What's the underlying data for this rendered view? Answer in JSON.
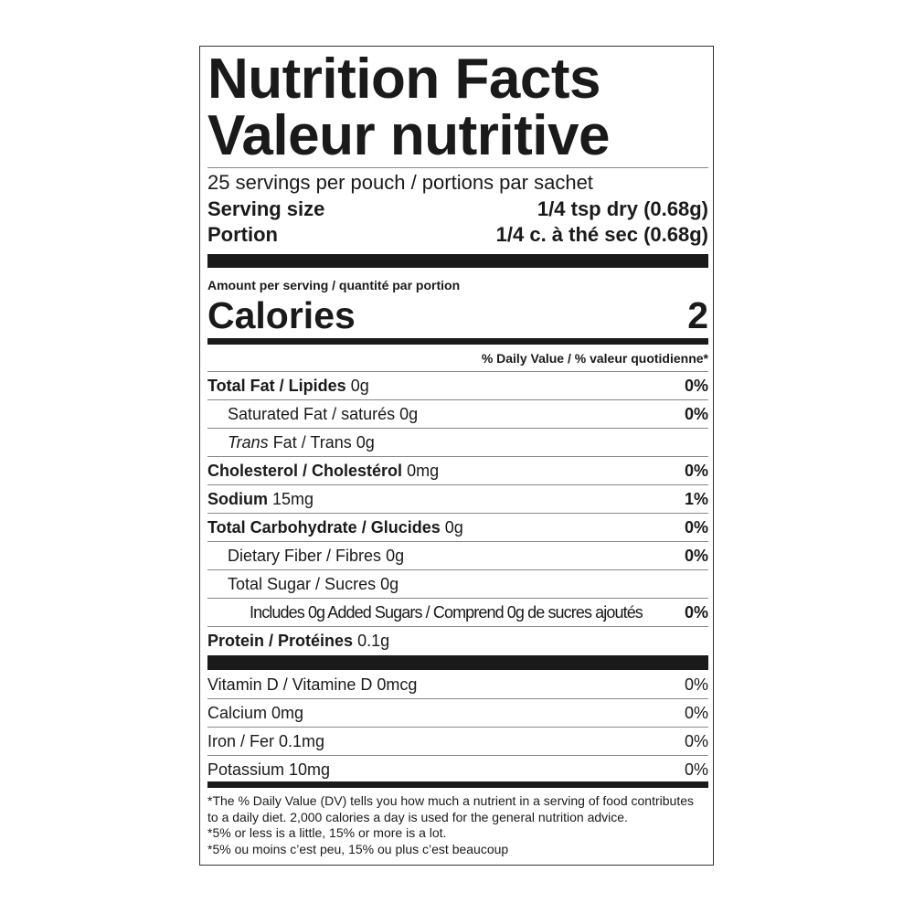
{
  "title_en": "Nutrition Facts",
  "title_fr": "Valeur nutritive",
  "servings": "25 servings per pouch / portions par sachet",
  "serving_size": {
    "label": "Serving size",
    "value": "1/4 tsp dry (0.68g)"
  },
  "portion": {
    "label": "Portion",
    "value": "1/4 c. à thé sec (0.68g)"
  },
  "amount_per_serving": "Amount per serving / quantité par portion",
  "calories": {
    "label": "Calories",
    "value": "2"
  },
  "dv_header": "% Daily Value / % valeur quotidienne*",
  "nutrients": [
    {
      "name": "Total Fat / Lipides",
      "amount": "0g",
      "dv": "0%"
    },
    {
      "name": "Saturated Fat / saturés",
      "amount": "0g",
      "dv": "0%"
    },
    {
      "name_italic": "Trans",
      "name": " Fat / Trans",
      "amount": "0g",
      "dv": ""
    },
    {
      "name": "Cholesterol / Cholestérol",
      "amount": "0mg",
      "dv": "0%"
    },
    {
      "name": "Sodium",
      "amount": "15mg",
      "dv": "1%"
    },
    {
      "name": "Total Carbohydrate / Glucides",
      "amount": "0g",
      "dv": "0%"
    },
    {
      "name": "Dietary Fiber / Fibres",
      "amount": "0g",
      "dv": "0%"
    },
    {
      "name": "Total Sugar / Sucres",
      "amount": "0g",
      "dv": ""
    },
    {
      "name": "Includes 0g Added Sugars / Comprend 0g de sucres ajoutés",
      "amount": "",
      "dv": "0%"
    },
    {
      "name": "Protein / Protéines",
      "amount": "0.1g",
      "dv": ""
    }
  ],
  "vitamins": [
    {
      "name": "Vitamin D / Vitamine D 0mcg",
      "dv": "0%"
    },
    {
      "name": "Calcium 0mg",
      "dv": "0%"
    },
    {
      "name": "Iron / Fer 0.1mg",
      "dv": "0%"
    },
    {
      "name": "Potassium 10mg",
      "dv": "0%"
    }
  ],
  "footnote": [
    "*The % Daily Value (DV) tells you how much a nutrient in a serving of food contributes",
    "to a daily diet. 2,000 calories a day is used for the general nutrition advice.",
    "*5% or less is a little, 15% or more is a lot.",
    "*5% ou moins c’est peu, 15% ou plus c’est beaucoup"
  ]
}
